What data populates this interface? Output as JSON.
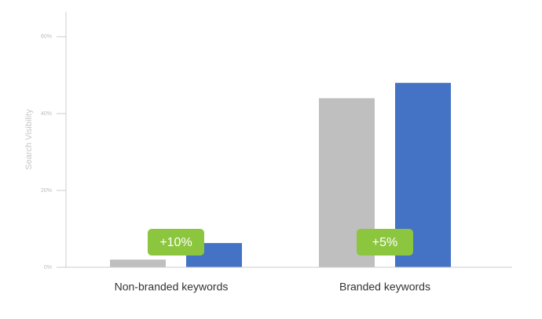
{
  "chart_data": {
    "type": "bar",
    "y_label": "Search Visibility",
    "categories": [
      "Non-branded keywords",
      "Branded keywords"
    ],
    "series": [
      {
        "color": "#bfbfbf",
        "values": [
          2,
          44
        ]
      },
      {
        "color": "#4472c4",
        "values": [
          6.3,
          48
        ]
      }
    ],
    "annotations": [
      "+10%",
      "+5%"
    ],
    "annotation_color": "#8cc63f",
    "ylim": [
      0,
      66.5
    ],
    "yticks": [
      {
        "value": 0,
        "label": "0%"
      },
      {
        "value": 20,
        "label": "20%"
      },
      {
        "value": 40,
        "label": "40%"
      },
      {
        "value": 60,
        "label": "60%"
      }
    ]
  }
}
